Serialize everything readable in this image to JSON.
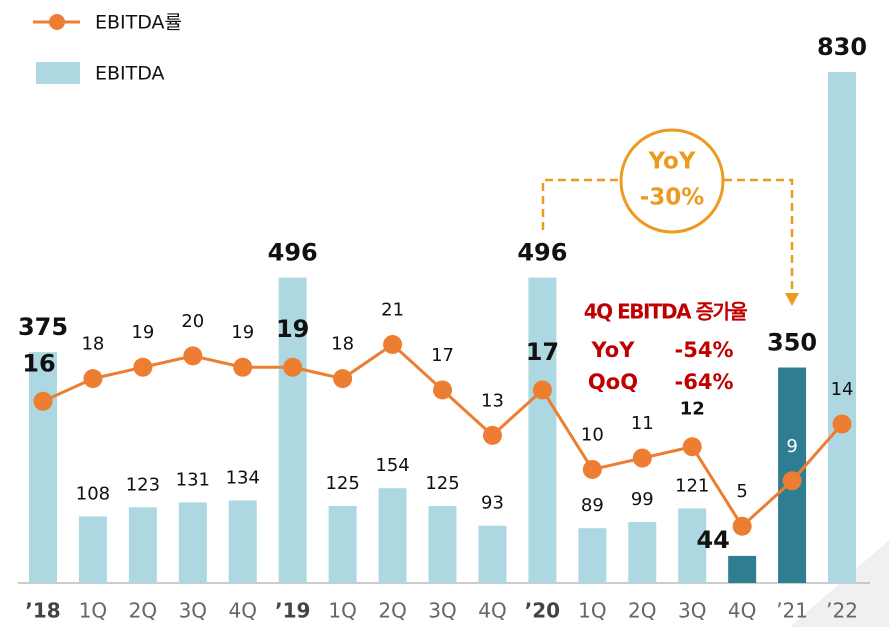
{
  "chart_data": {
    "type": "bar_line",
    "categories": [
      "’18",
      "1Q",
      "2Q",
      "3Q",
      "4Q",
      "’19",
      "1Q",
      "2Q",
      "3Q",
      "4Q",
      "’20",
      "1Q",
      "2Q",
      "3Q",
      "4Q",
      "’21",
      "’22"
    ],
    "series": [
      {
        "name": "EBITDA률",
        "type": "line",
        "color": "#ed7d31",
        "axis": "y2",
        "values": [
          16,
          18,
          19,
          20,
          19,
          19,
          18,
          21,
          17,
          13,
          17,
          10,
          11,
          12,
          5,
          9,
          14
        ]
      },
      {
        "name": "EBITDA",
        "type": "bar",
        "color": "#add8e2",
        "colors": [
          "#add8e2",
          "#add8e2",
          "#add8e2",
          "#add8e2",
          "#add8e2",
          "#add8e2",
          "#add8e2",
          "#add8e2",
          "#add8e2",
          "#add8e2",
          "#add8e2",
          "#add8e2",
          "#add8e2",
          "#add8e2",
          "#2e7d91",
          "#2e7d91",
          "#add8e2"
        ],
        "values": [
          375,
          108,
          123,
          131,
          134,
          496,
          125,
          154,
          125,
          93,
          496,
          89,
          99,
          121,
          44,
          350,
          830
        ]
      }
    ],
    "ylim": [
      0,
      830
    ],
    "y2lim": [
      0,
      45
    ],
    "annotations": {
      "bubble": [
        "YoY",
        "-30%"
      ],
      "growth_title": "4Q EBITDA 증가율",
      "yoy_label": "YoY",
      "yoy_value": "-54%",
      "qoq_label": "QoQ",
      "qoq_value": "-64%"
    }
  }
}
